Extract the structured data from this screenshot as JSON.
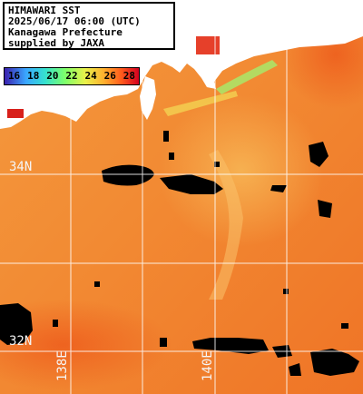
{
  "header": {
    "line1": "HIMAWARI SST",
    "line2": "2025/06/17 06:00 (UTC)",
    "line3": "Kanagawa Prefecture",
    "line4": "supplied by JAXA"
  },
  "legend": {
    "ticks": [
      "16",
      "18",
      "20",
      "22",
      "24",
      "26",
      "28"
    ],
    "colors": [
      "#3a1fae",
      "#3aa7ff",
      "#35e0d0",
      "#7dff6a",
      "#e9f24a",
      "#ffb02e",
      "#ff5b1c",
      "#d40020"
    ]
  },
  "graticule": {
    "lat_labels": [
      "34N",
      "32N"
    ],
    "lon_labels": [
      "138E",
      "140E"
    ]
  },
  "colors": {
    "sea_base": "#f2812d",
    "sea_warm": "#ef6f24",
    "sea_cool": "#f6a445",
    "land": "#ffffff",
    "cloud_mask": "#000000",
    "grid": "#ffffff"
  }
}
